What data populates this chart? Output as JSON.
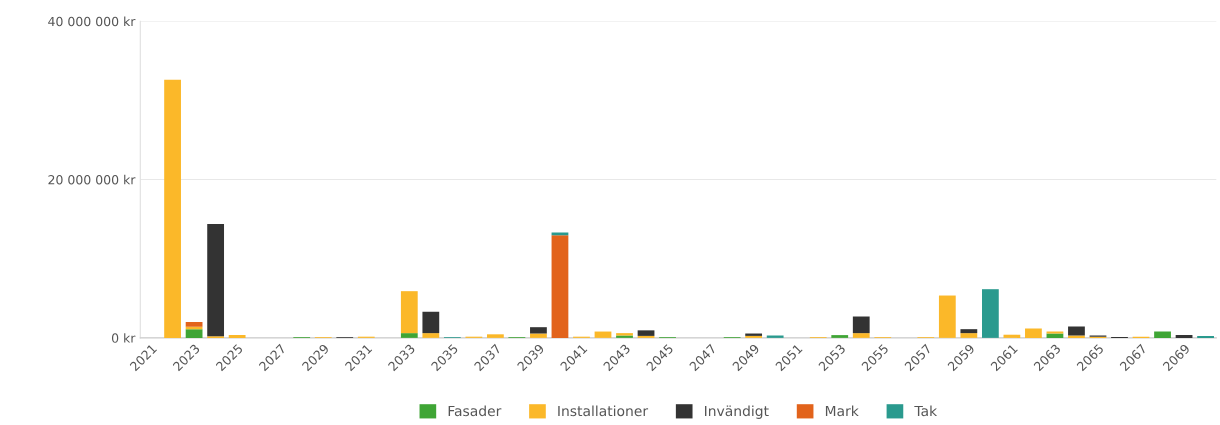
{
  "chart_data": {
    "type": "bar",
    "stacked": true,
    "categories": [
      "2021",
      null,
      "2023",
      null,
      "2025",
      null,
      "2027",
      null,
      "2029",
      null,
      "2031",
      null,
      "2033",
      null,
      "2035",
      null,
      "2037",
      null,
      "2039",
      null,
      "2041",
      null,
      "2043",
      null,
      "2045",
      null,
      "2047",
      null,
      "2049",
      null,
      "2051",
      null,
      "2053",
      null,
      "2055",
      null,
      "2057",
      null,
      "2059",
      null,
      "2061",
      null,
      "2063",
      null,
      "2065",
      null,
      "2067",
      null,
      "2069",
      null
    ],
    "series": [
      {
        "name": "Fasader",
        "color": "#3fa535",
        "values": [
          null,
          null,
          1100000,
          null,
          null,
          null,
          null,
          100000,
          null,
          null,
          null,
          null,
          600000,
          null,
          null,
          null,
          null,
          100000,
          null,
          null,
          null,
          null,
          300000,
          null,
          100000,
          null,
          null,
          100000,
          null,
          null,
          null,
          null,
          350000,
          null,
          null,
          null,
          null,
          null,
          null,
          null,
          null,
          null,
          550000,
          null,
          null,
          null,
          null,
          800000,
          null,
          null
        ]
      },
      {
        "name": "Installationer",
        "color": "#fbb829",
        "values": [
          null,
          32600000,
          300000,
          200000,
          350000,
          null,
          null,
          null,
          100000,
          null,
          150000,
          null,
          5300000,
          600000,
          null,
          150000,
          450000,
          null,
          550000,
          null,
          150000,
          800000,
          300000,
          250000,
          null,
          null,
          null,
          null,
          250000,
          null,
          null,
          100000,
          null,
          600000,
          100000,
          null,
          100000,
          5350000,
          600000,
          null,
          400000,
          1200000,
          250000,
          300000,
          150000,
          null,
          150000,
          null,
          null,
          null
        ]
      },
      {
        "name": "Invändigt",
        "color": "#333333",
        "values": [
          null,
          null,
          null,
          14200000,
          null,
          null,
          null,
          null,
          null,
          100000,
          null,
          null,
          null,
          2700000,
          null,
          null,
          null,
          null,
          800000,
          null,
          null,
          null,
          null,
          700000,
          null,
          null,
          null,
          null,
          300000,
          null,
          null,
          null,
          null,
          2100000,
          null,
          null,
          null,
          null,
          500000,
          null,
          null,
          null,
          null,
          1150000,
          150000,
          100000,
          null,
          null,
          350000,
          null
        ]
      },
      {
        "name": "Mark",
        "color": "#e2631b",
        "values": [
          null,
          null,
          600000,
          null,
          null,
          null,
          null,
          null,
          null,
          null,
          null,
          null,
          null,
          null,
          null,
          null,
          null,
          null,
          null,
          12950000,
          null,
          null,
          null,
          null,
          null,
          null,
          null,
          null,
          null,
          null,
          null,
          null,
          null,
          null,
          null,
          null,
          null,
          null,
          null,
          null,
          null,
          null,
          null,
          null,
          null,
          null,
          null,
          null,
          null,
          null
        ]
      },
      {
        "name": "Tak",
        "color": "#2a9a8e",
        "values": [
          null,
          null,
          null,
          null,
          null,
          null,
          null,
          null,
          null,
          null,
          null,
          null,
          null,
          null,
          100000,
          null,
          null,
          null,
          null,
          350000,
          null,
          null,
          null,
          null,
          null,
          null,
          null,
          null,
          null,
          300000,
          null,
          null,
          null,
          null,
          null,
          null,
          null,
          null,
          null,
          6150000,
          null,
          null,
          null,
          null,
          null,
          null,
          null,
          null,
          null,
          250000
        ]
      }
    ],
    "ylim": [
      0,
      40000000
    ],
    "yticks": [
      {
        "value": 0,
        "label": "0 kr"
      },
      {
        "value": 20000000,
        "label": "20 000 000 kr"
      },
      {
        "value": 40000000,
        "label": "40 000 000 kr"
      }
    ],
    "grid": "y",
    "legend": "bottom"
  }
}
